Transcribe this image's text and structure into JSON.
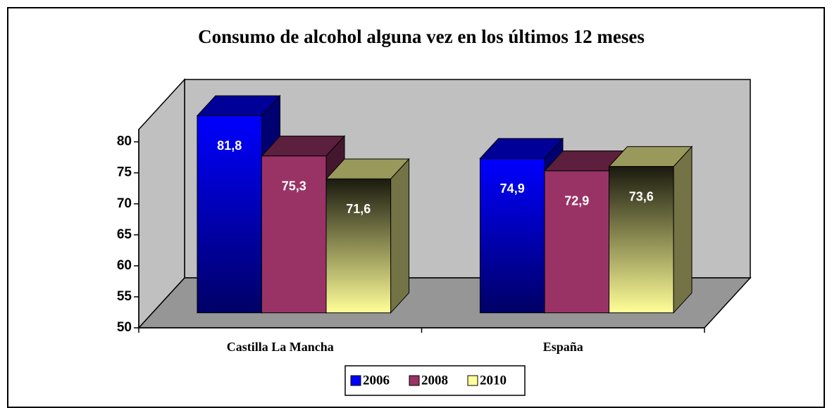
{
  "chart_data": {
    "type": "bar3d",
    "title": "Consumo de alcohol alguna vez en los últimos 12 meses",
    "categories": [
      "Castilla La Mancha",
      "España"
    ],
    "series": [
      {
        "name": "2006",
        "color": "#0000ff",
        "values": [
          81.8,
          74.9
        ],
        "value_labels": [
          "81,8",
          "74,9"
        ]
      },
      {
        "name": "2008",
        "color": "#993366",
        "values": [
          75.3,
          72.9
        ],
        "value_labels": [
          "75,3",
          "72,9"
        ]
      },
      {
        "name": "2010",
        "color": "#ffff99",
        "values": [
          71.6,
          73.6
        ],
        "value_labels": [
          "71,6",
          "73,6"
        ]
      }
    ],
    "ylim": [
      50,
      82
    ],
    "yticks": [
      50,
      55,
      60,
      65,
      70,
      75,
      80
    ],
    "legend": "bottom"
  }
}
